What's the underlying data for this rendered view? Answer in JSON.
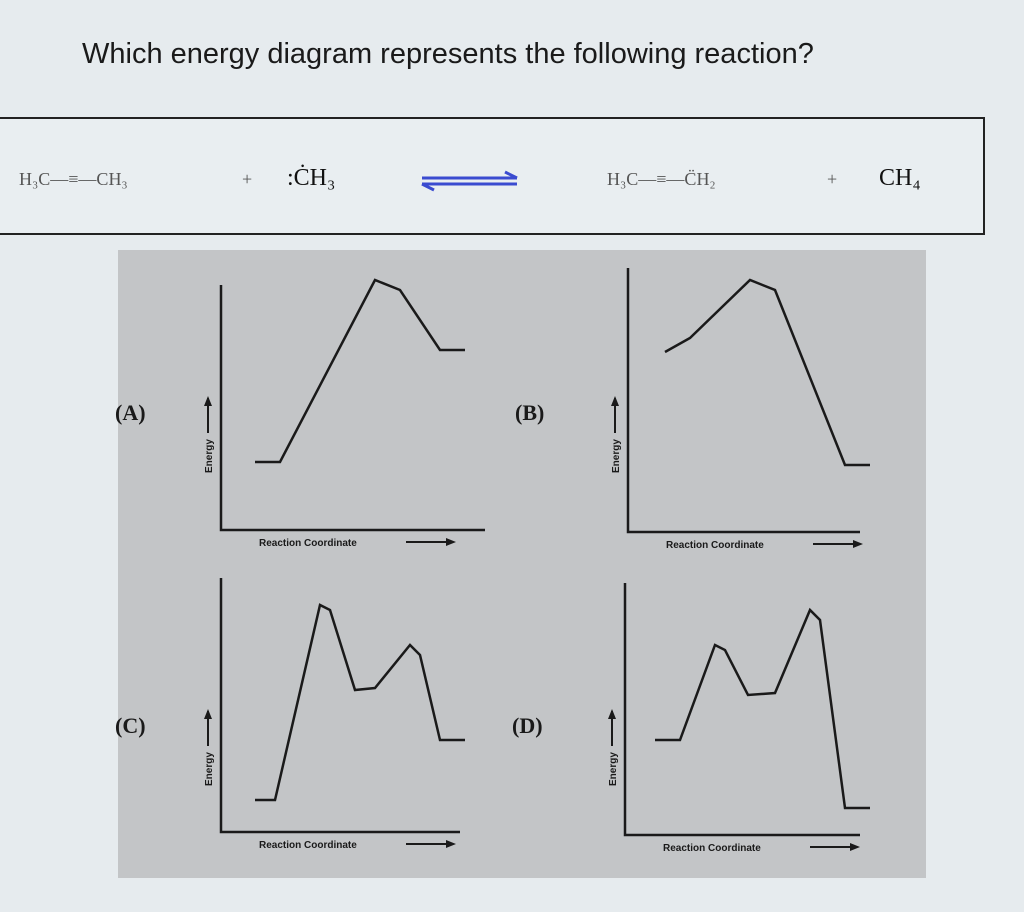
{
  "question": "Which energy diagram represents the following reaction?",
  "reaction": {
    "reactant1": "H₃C—≡—CH₃",
    "plus1": "+",
    "reactant2": ":ĊH₃",
    "arrow": "equilibrium-arrows",
    "product1": "H₃C—≡—C̈H₂",
    "plus2": "+",
    "product2": "CH₄",
    "arrow_color": "#3a4bd0"
  },
  "diagrams": [
    {
      "label": "(A)",
      "y_axis": "Energy",
      "x_axis": "Reaction Coordinate"
    },
    {
      "label": "(B)",
      "y_axis": "Energy",
      "x_axis": "Reaction Coordinate"
    },
    {
      "label": "(C)",
      "y_axis": "Energy",
      "x_axis": "Reaction Coordinate"
    },
    {
      "label": "(D)",
      "y_axis": "Energy",
      "x_axis": "Reaction Coordinate"
    }
  ]
}
